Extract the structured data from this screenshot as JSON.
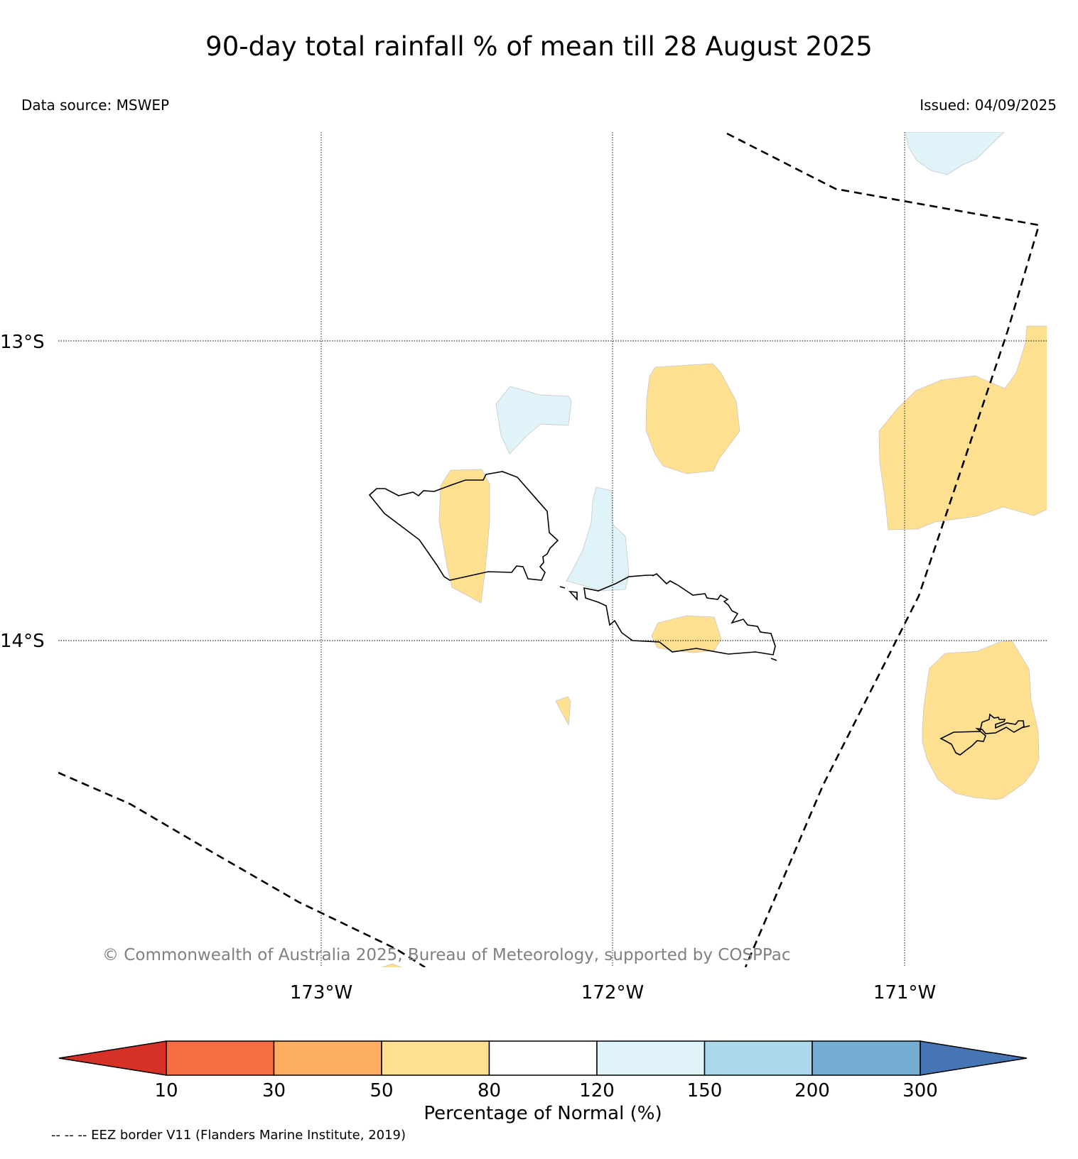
{
  "title": "90-day total rainfall % of mean till 28 August 2025",
  "data_source": "Data source: MSWEP",
  "issued": "Issued: 04/09/2025",
  "map": {
    "lat_labels": [
      "13°S",
      "14°S"
    ],
    "lon_labels": [
      "173°W",
      "172°W",
      "171°W"
    ],
    "copyright": "© Commonwealth of Australia 2025, Bureau of Meteorology, supported by COSPPac",
    "anomaly_colors": {
      "50-80": "#fee090",
      "120-150": "#e0f3f8"
    }
  },
  "colorbar": {
    "title": "Percentage of Normal (%)",
    "ticks": [
      "10",
      "30",
      "50",
      "80",
      "120",
      "150",
      "200",
      "300"
    ],
    "colors": [
      "#d73027",
      "#f46d43",
      "#fdae61",
      "#fee090",
      "#ffffff",
      "#e0f3f8",
      "#abd9e9",
      "#74add1",
      "#4575b4"
    ]
  },
  "legend_note": "-- -- -- EEZ border V11 (Flanders Marine Institute, 2019)"
}
